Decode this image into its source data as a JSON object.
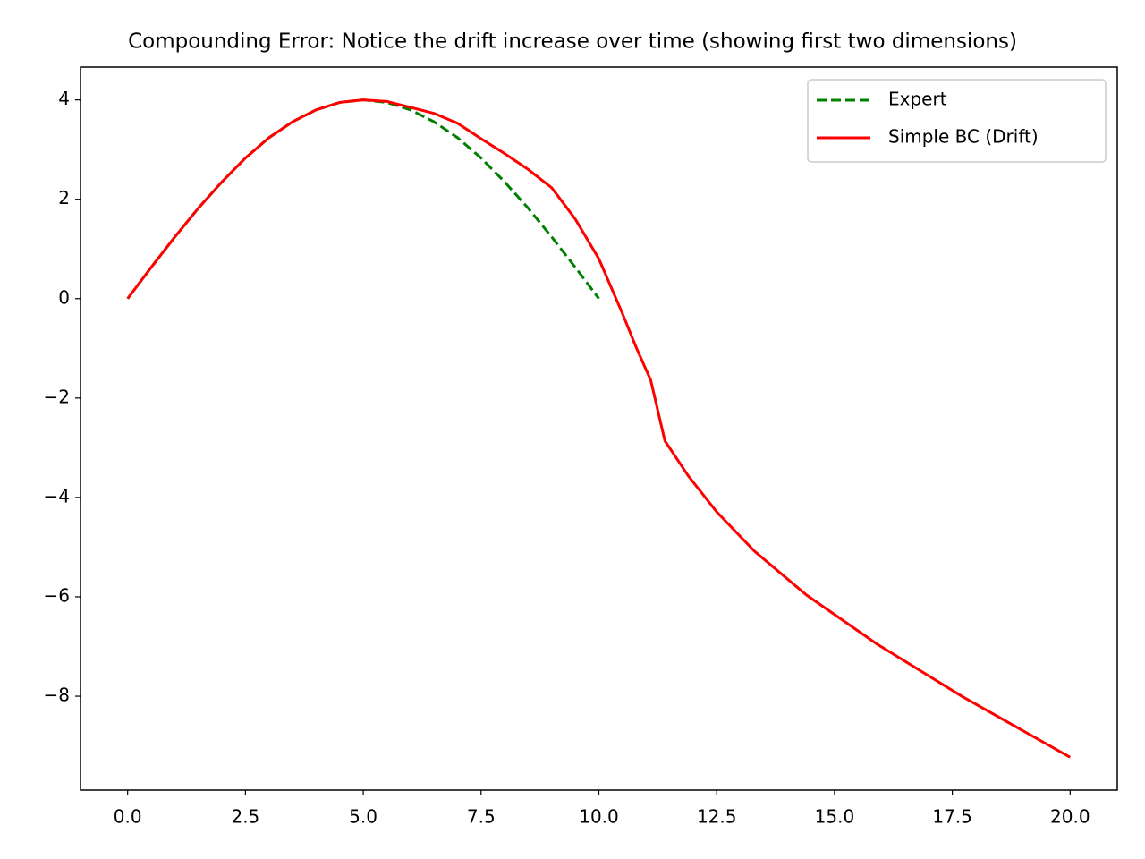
{
  "chart_data": {
    "type": "line",
    "title": "Compounding Error: Notice the drift increase over time (showing first two dimensions)",
    "xlim": [
      -1,
      21
    ],
    "ylim": [
      -9.89,
      4.66
    ],
    "xticks": [
      {
        "value": 0,
        "label": "0.0"
      },
      2.5,
      {
        "value": 5,
        "label": "5.0"
      },
      7.5,
      {
        "value": 10,
        "label": "10.0"
      },
      12.5,
      {
        "value": 15,
        "label": "15.0"
      },
      17.5,
      {
        "value": 20,
        "label": "20.0"
      }
    ],
    "yticks": [
      {
        "value": -8,
        "label": "−8"
      },
      {
        "value": -6,
        "label": "−6"
      },
      {
        "value": -4,
        "label": "−4"
      },
      {
        "value": -2,
        "label": "−2"
      },
      0,
      2,
      4
    ],
    "legend": "upper right",
    "series": [
      {
        "name": "Expert",
        "color": "#008000",
        "dash": "dashed",
        "x": [
          0,
          0.5,
          1,
          1.5,
          2,
          2.5,
          3,
          3.5,
          4,
          4.5,
          5,
          5.5,
          6,
          6.5,
          7,
          7.5,
          8,
          8.5,
          9,
          9.5,
          10
        ],
        "values": [
          0,
          0.63,
          1.24,
          1.82,
          2.35,
          2.83,
          3.24,
          3.56,
          3.8,
          3.95,
          4.0,
          3.95,
          3.8,
          3.56,
          3.24,
          2.83,
          2.35,
          1.82,
          1.24,
          0.63,
          0
        ]
      },
      {
        "name": "Simple BC (Drift)",
        "color": "#ff0000",
        "dash": "solid",
        "x": [
          0,
          0.5,
          1,
          1.5,
          2,
          2.5,
          3,
          3.5,
          4,
          4.5,
          5,
          5.5,
          6,
          6.5,
          7,
          7.5,
          8,
          8.5,
          9,
          9.5,
          10,
          10.5,
          10.8,
          11.1,
          11.4,
          11.9,
          12.5,
          13.3,
          14.4,
          15.9,
          17.7,
          20
        ],
        "values": [
          0,
          0.63,
          1.24,
          1.82,
          2.35,
          2.83,
          3.24,
          3.56,
          3.8,
          3.95,
          4.0,
          3.97,
          3.85,
          3.73,
          3.53,
          3.22,
          2.92,
          2.6,
          2.23,
          1.6,
          0.8,
          -0.3,
          -1.0,
          -1.64,
          -2.86,
          -3.57,
          -4.29,
          -5.08,
          -5.96,
          -6.95,
          -8.0,
          -9.23
        ]
      }
    ]
  }
}
